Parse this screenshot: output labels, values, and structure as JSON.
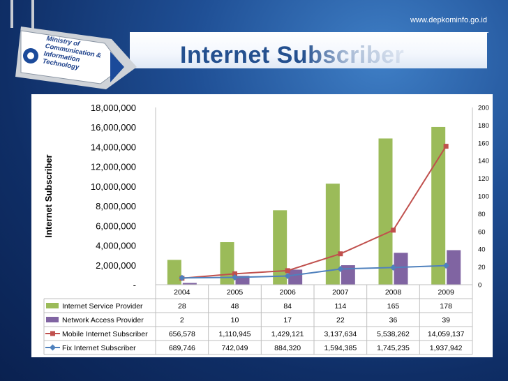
{
  "header": {
    "url": "www.depkominfo.go.id",
    "title": "Internet Subscriber",
    "logo_text": [
      "Ministry of",
      "Communication &",
      "Information",
      "Technology"
    ]
  },
  "colors": {
    "isp": "#9bbb59",
    "nap": "#8064a2",
    "mobile": "#c0504d",
    "fix": "#4f81bd"
  },
  "chart_data": {
    "type": "bar",
    "categories": [
      "2004",
      "2005",
      "2006",
      "2007",
      "2008",
      "2009"
    ],
    "ylabel": "Internet Subscriber",
    "ylim": [
      0,
      18000000
    ],
    "y_ticks": [
      "-",
      "2,000,000",
      "4,000,000",
      "6,000,000",
      "8,000,000",
      "10,000,000",
      "12,000,000",
      "14,000,000",
      "16,000,000",
      "18,000,000"
    ],
    "y2lim": [
      0,
      200
    ],
    "y2_ticks": [
      "0",
      "20",
      "40",
      "60",
      "80",
      "100",
      "120",
      "140",
      "160",
      "180",
      "200"
    ],
    "series": [
      {
        "name": "Internet Service Provider",
        "type": "bar",
        "axis": "right",
        "values": [
          28,
          48,
          84,
          114,
          165,
          178
        ],
        "labels": [
          "28",
          "48",
          "84",
          "114",
          "165",
          "178"
        ]
      },
      {
        "name": "Network Access Provider",
        "type": "bar",
        "axis": "right",
        "values": [
          2,
          10,
          17,
          22,
          36,
          39
        ],
        "labels": [
          "2",
          "10",
          "17",
          "22",
          "36",
          "39"
        ]
      },
      {
        "name": "Mobile Internet Subscriber",
        "type": "line",
        "axis": "left",
        "values": [
          656578,
          1110945,
          1429121,
          3137634,
          5538262,
          14059137
        ],
        "labels": [
          "656,578",
          "1,110,945",
          "1,429,121",
          "3,137,634",
          "5,538,262",
          "14,059,137"
        ]
      },
      {
        "name": "Fix Internet Subscriber",
        "type": "line",
        "axis": "left",
        "values": [
          689746,
          742049,
          884320,
          1594385,
          1745235,
          1937942
        ],
        "labels": [
          "689,746",
          "742,049",
          "884,320",
          "1,594,385",
          "1,745,235",
          "1,937,942"
        ]
      }
    ]
  }
}
